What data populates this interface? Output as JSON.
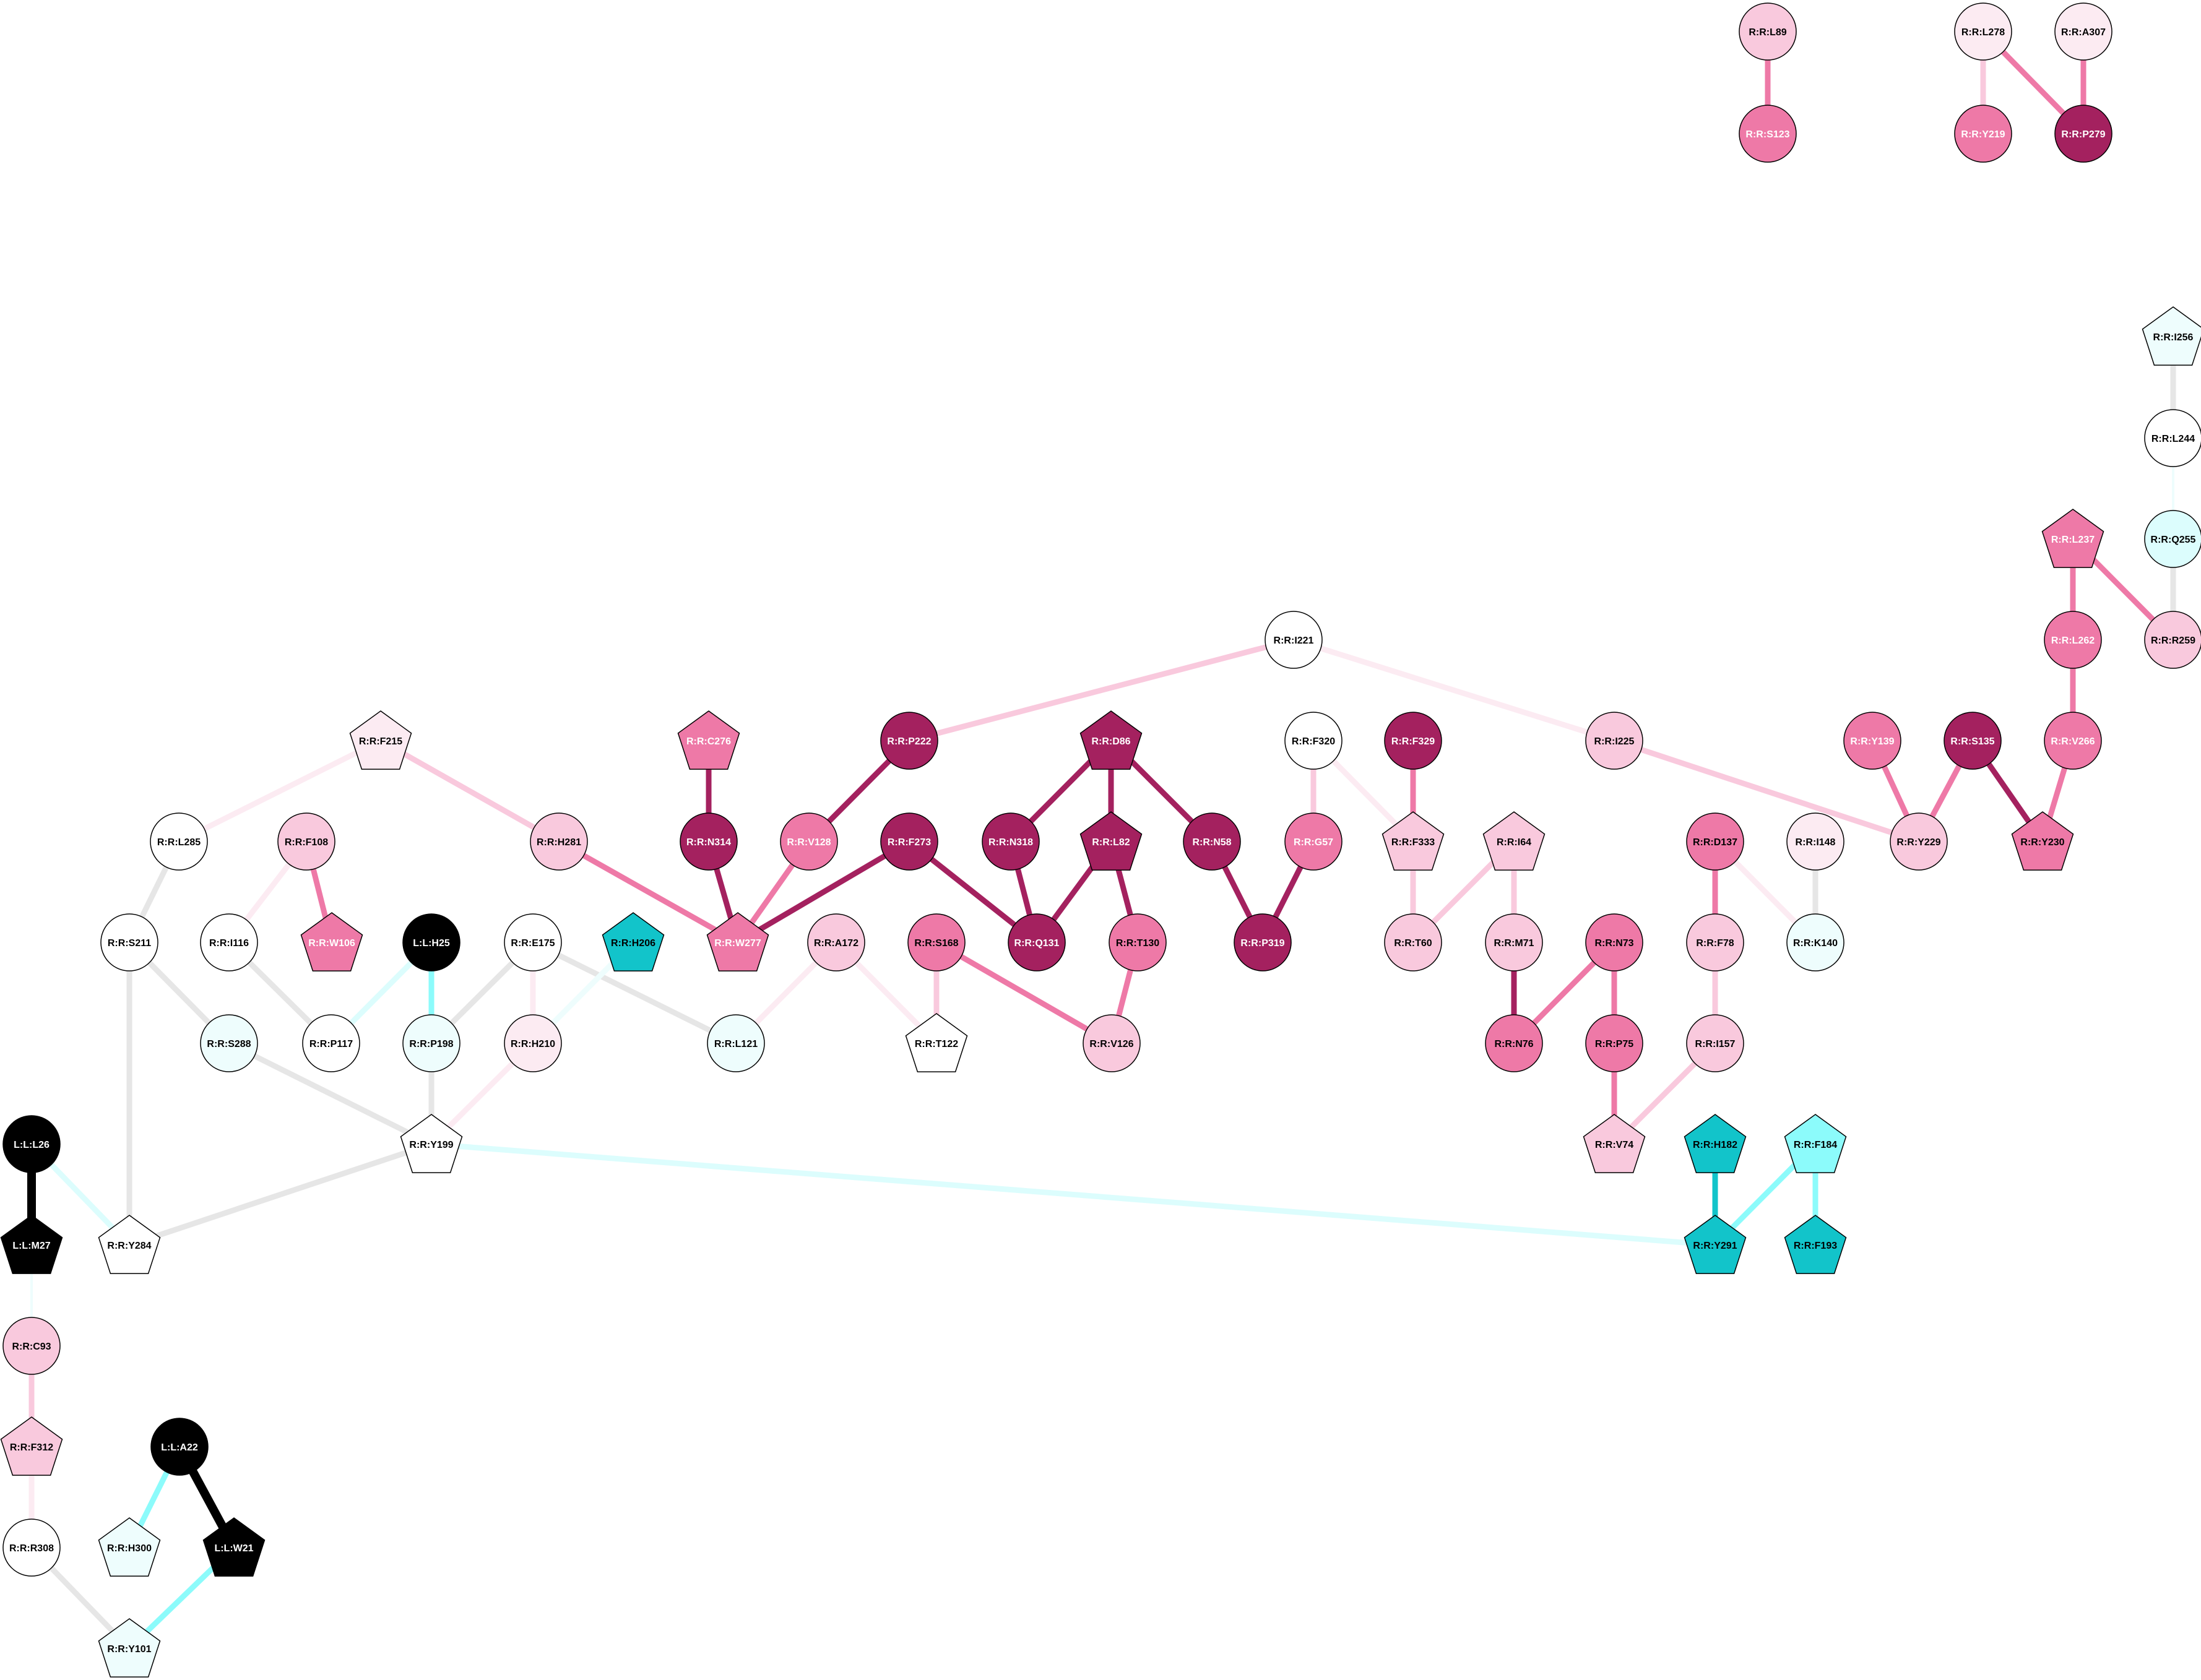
{
  "nodes": [
    {
      "id": "n1",
      "label": "R:R:L89",
      "shape": "circle",
      "fill": "#f9c9dd",
      "text": "#000000"
    },
    {
      "id": "n2",
      "label": "R:R:S123",
      "shape": "circle",
      "fill": "#ee79a7",
      "text": "#ffffff"
    },
    {
      "id": "n3",
      "label": "R:R:L278",
      "shape": "circle",
      "fill": "#fcebf2",
      "text": "#000000"
    },
    {
      "id": "n4",
      "label": "R:R:A307",
      "shape": "circle",
      "fill": "#fcebf2",
      "text": "#000000"
    },
    {
      "id": "n5",
      "label": "R:R:Y219",
      "shape": "circle",
      "fill": "#ee79a7",
      "text": "#ffffff"
    },
    {
      "id": "n6",
      "label": "R:R:P279",
      "shape": "circle",
      "fill": "#a4215f",
      "text": "#ffffff"
    },
    {
      "id": "n7",
      "label": "R:R:I256",
      "shape": "pentagon",
      "fill": "#eefdfd",
      "text": "#000000"
    },
    {
      "id": "n8",
      "label": "R:R:L244",
      "shape": "circle",
      "fill": "#ffffff",
      "text": "#000000"
    },
    {
      "id": "n9",
      "label": "R:R:L237",
      "shape": "pentagon",
      "fill": "#ee79a7",
      "text": "#ffffff"
    },
    {
      "id": "n10",
      "label": "R:R:Q255",
      "shape": "circle",
      "fill": "#dcfdfd",
      "text": "#000000"
    },
    {
      "id": "n11",
      "label": "R:R:L262",
      "shape": "circle",
      "fill": "#ee79a7",
      "text": "#ffffff"
    },
    {
      "id": "n12",
      "label": "R:R:R259",
      "shape": "circle",
      "fill": "#f9c9dd",
      "text": "#000000"
    },
    {
      "id": "n13",
      "label": "R:R:I221",
      "shape": "circle",
      "fill": "#ffffff",
      "text": "#000000"
    },
    {
      "id": "n14",
      "label": "R:R:F215",
      "shape": "pentagon",
      "fill": "#fcebf2",
      "text": "#000000"
    },
    {
      "id": "n15",
      "label": "R:R:C276",
      "shape": "pentagon",
      "fill": "#ee79a7",
      "text": "#ffffff"
    },
    {
      "id": "n16",
      "label": "R:R:P222",
      "shape": "circle",
      "fill": "#a4215f",
      "text": "#ffffff"
    },
    {
      "id": "n17",
      "label": "R:R:D86",
      "shape": "pentagon",
      "fill": "#a4215f",
      "text": "#ffffff"
    },
    {
      "id": "n18",
      "label": "R:R:F320",
      "shape": "circle",
      "fill": "#ffffff",
      "text": "#000000"
    },
    {
      "id": "n19",
      "label": "R:R:F329",
      "shape": "circle",
      "fill": "#a4215f",
      "text": "#ffffff"
    },
    {
      "id": "n20",
      "label": "R:R:I225",
      "shape": "circle",
      "fill": "#f9c9dd",
      "text": "#000000"
    },
    {
      "id": "n21",
      "label": "R:R:Y139",
      "shape": "circle",
      "fill": "#ee79a7",
      "text": "#ffffff"
    },
    {
      "id": "n22",
      "label": "R:R:S135",
      "shape": "circle",
      "fill": "#a4215f",
      "text": "#ffffff"
    },
    {
      "id": "n23",
      "label": "R:R:V266",
      "shape": "circle",
      "fill": "#ee79a7",
      "text": "#ffffff"
    },
    {
      "id": "n24",
      "label": "R:R:L285",
      "shape": "circle",
      "fill": "#ffffff",
      "text": "#000000"
    },
    {
      "id": "n25",
      "label": "R:R:F108",
      "shape": "circle",
      "fill": "#f9c9dd",
      "text": "#000000"
    },
    {
      "id": "n26",
      "label": "R:R:H281",
      "shape": "circle",
      "fill": "#f9c9dd",
      "text": "#000000"
    },
    {
      "id": "n27",
      "label": "R:R:N314",
      "shape": "circle",
      "fill": "#a4215f",
      "text": "#ffffff"
    },
    {
      "id": "n28",
      "label": "R:R:V128",
      "shape": "circle",
      "fill": "#ee79a7",
      "text": "#ffffff"
    },
    {
      "id": "n29",
      "label": "R:R:F273",
      "shape": "circle",
      "fill": "#a4215f",
      "text": "#ffffff"
    },
    {
      "id": "n30",
      "label": "R:R:N318",
      "shape": "circle",
      "fill": "#a4215f",
      "text": "#ffffff"
    },
    {
      "id": "n31",
      "label": "R:R:L82",
      "shape": "pentagon",
      "fill": "#a4215f",
      "text": "#ffffff"
    },
    {
      "id": "n32",
      "label": "R:R:N58",
      "shape": "circle",
      "fill": "#a4215f",
      "text": "#ffffff"
    },
    {
      "id": "n33",
      "label": "R:R:G57",
      "shape": "circle",
      "fill": "#ee79a7",
      "text": "#ffffff"
    },
    {
      "id": "n34",
      "label": "R:R:F333",
      "shape": "pentagon",
      "fill": "#f9c9dd",
      "text": "#000000"
    },
    {
      "id": "n35",
      "label": "R:R:I64",
      "shape": "pentagon",
      "fill": "#f9c9dd",
      "text": "#000000"
    },
    {
      "id": "n36",
      "label": "R:R:D137",
      "shape": "circle",
      "fill": "#ee79a7",
      "text": "#000000"
    },
    {
      "id": "n37",
      "label": "R:R:I148",
      "shape": "circle",
      "fill": "#fcebf2",
      "text": "#000000"
    },
    {
      "id": "n38",
      "label": "R:R:Y229",
      "shape": "circle",
      "fill": "#f9c9dd",
      "text": "#000000"
    },
    {
      "id": "n39",
      "label": "R:R:Y230",
      "shape": "pentagon",
      "fill": "#ee79a7",
      "text": "#000000"
    },
    {
      "id": "n40",
      "label": "R:R:S211",
      "shape": "circle",
      "fill": "#ffffff",
      "text": "#000000"
    },
    {
      "id": "n41",
      "label": "R:R:I116",
      "shape": "circle",
      "fill": "#ffffff",
      "text": "#000000"
    },
    {
      "id": "n42",
      "label": "R:R:W106",
      "shape": "pentagon",
      "fill": "#ee79a7",
      "text": "#ffffff"
    },
    {
      "id": "n43",
      "label": "L:L:H25",
      "shape": "circle",
      "fill": "#000000",
      "text": "#ffffff"
    },
    {
      "id": "n44",
      "label": "R:R:E175",
      "shape": "circle",
      "fill": "#ffffff",
      "text": "#000000"
    },
    {
      "id": "n45",
      "label": "R:R:H206",
      "shape": "pentagon",
      "fill": "#12c4ca",
      "text": "#000000"
    },
    {
      "id": "n46",
      "label": "R:R:W277",
      "shape": "pentagon",
      "fill": "#ee79a7",
      "text": "#ffffff"
    },
    {
      "id": "n47",
      "label": "R:R:A172",
      "shape": "circle",
      "fill": "#f9c9dd",
      "text": "#000000"
    },
    {
      "id": "n48",
      "label": "R:R:S168",
      "shape": "circle",
      "fill": "#ee79a7",
      "text": "#000000"
    },
    {
      "id": "n49",
      "label": "R:R:Q131",
      "shape": "circle",
      "fill": "#a4215f",
      "text": "#ffffff"
    },
    {
      "id": "n50",
      "label": "R:R:T130",
      "shape": "circle",
      "fill": "#ee79a7",
      "text": "#000000"
    },
    {
      "id": "n51",
      "label": "R:R:P319",
      "shape": "circle",
      "fill": "#a4215f",
      "text": "#ffffff"
    },
    {
      "id": "n52",
      "label": "R:R:T60",
      "shape": "circle",
      "fill": "#f9c9dd",
      "text": "#000000"
    },
    {
      "id": "n53",
      "label": "R:R:M71",
      "shape": "circle",
      "fill": "#f9c9dd",
      "text": "#000000"
    },
    {
      "id": "n54",
      "label": "R:R:N73",
      "shape": "circle",
      "fill": "#ee79a7",
      "text": "#000000"
    },
    {
      "id": "n55",
      "label": "R:R:F78",
      "shape": "circle",
      "fill": "#f9c9dd",
      "text": "#000000"
    },
    {
      "id": "n56",
      "label": "R:R:K140",
      "shape": "circle",
      "fill": "#eefdfd",
      "text": "#000000"
    },
    {
      "id": "n57",
      "label": "R:R:S288",
      "shape": "circle",
      "fill": "#eefdfd",
      "text": "#000000"
    },
    {
      "id": "n58",
      "label": "R:R:P117",
      "shape": "circle",
      "fill": "#ffffff",
      "text": "#000000"
    },
    {
      "id": "n59",
      "label": "R:R:P198",
      "shape": "circle",
      "fill": "#eefdfd",
      "text": "#000000"
    },
    {
      "id": "n60",
      "label": "R:R:H210",
      "shape": "circle",
      "fill": "#fcebf2",
      "text": "#000000"
    },
    {
      "id": "n61",
      "label": "R:R:L121",
      "shape": "circle",
      "fill": "#eefdfd",
      "text": "#000000"
    },
    {
      "id": "n62",
      "label": "R:R:T122",
      "shape": "pentagon",
      "fill": "#ffffff",
      "text": "#000000"
    },
    {
      "id": "n63",
      "label": "R:R:V126",
      "shape": "circle",
      "fill": "#f9c9dd",
      "text": "#000000"
    },
    {
      "id": "n64",
      "label": "R:R:N76",
      "shape": "circle",
      "fill": "#ee79a7",
      "text": "#000000"
    },
    {
      "id": "n65",
      "label": "R:R:P75",
      "shape": "circle",
      "fill": "#ee79a7",
      "text": "#000000"
    },
    {
      "id": "n66",
      "label": "R:R:I157",
      "shape": "circle",
      "fill": "#f9c9dd",
      "text": "#000000"
    },
    {
      "id": "n67",
      "label": "L:L:L26",
      "shape": "circle",
      "fill": "#000000",
      "text": "#ffffff"
    },
    {
      "id": "n68",
      "label": "R:R:Y199",
      "shape": "pentagon",
      "fill": "#ffffff",
      "text": "#000000"
    },
    {
      "id": "n69",
      "label": "R:R:V74",
      "shape": "pentagon",
      "fill": "#f9c9dd",
      "text": "#000000"
    },
    {
      "id": "n70",
      "label": "R:R:H182",
      "shape": "pentagon",
      "fill": "#12c4ca",
      "text": "#000000"
    },
    {
      "id": "n71",
      "label": "R:R:F184",
      "shape": "pentagon",
      "fill": "#8cfbfb",
      "text": "#000000"
    },
    {
      "id": "n72",
      "label": "L:L:M27",
      "shape": "pentagon",
      "fill": "#000000",
      "text": "#ffffff"
    },
    {
      "id": "n73",
      "label": "R:R:Y284",
      "shape": "pentagon",
      "fill": "#ffffff",
      "text": "#000000"
    },
    {
      "id": "n74",
      "label": "R:R:Y291",
      "shape": "pentagon",
      "fill": "#12c4ca",
      "text": "#000000"
    },
    {
      "id": "n75",
      "label": "R:R:F193",
      "shape": "pentagon",
      "fill": "#12c4ca",
      "text": "#000000"
    },
    {
      "id": "n76",
      "label": "R:R:C93",
      "shape": "circle",
      "fill": "#f9c9dd",
      "text": "#000000"
    },
    {
      "id": "n77",
      "label": "R:R:F312",
      "shape": "pentagon",
      "fill": "#f9c9dd",
      "text": "#000000"
    },
    {
      "id": "n78",
      "label": "L:L:A22",
      "shape": "circle",
      "fill": "#000000",
      "text": "#ffffff"
    },
    {
      "id": "n79",
      "label": "R:R:R308",
      "shape": "circle",
      "fill": "#ffffff",
      "text": "#000000"
    },
    {
      "id": "n80",
      "label": "R:R:H300",
      "shape": "pentagon",
      "fill": "#eefdfd",
      "text": "#000000"
    },
    {
      "id": "n81",
      "label": "L:L:W21",
      "shape": "pentagon",
      "fill": "#000000",
      "text": "#ffffff"
    },
    {
      "id": "n82",
      "label": "R:R:Y101",
      "shape": "pentagon",
      "fill": "#eefdfd",
      "text": "#000000"
    }
  ],
  "edges": [
    {
      "s": "n1",
      "t": "n2",
      "color": "#ee79a7",
      "w": "medium"
    },
    {
      "s": "n3",
      "t": "n5",
      "color": "#f9c9dd",
      "w": "medium"
    },
    {
      "s": "n3",
      "t": "n6",
      "color": "#ee79a7",
      "w": "medium"
    },
    {
      "s": "n4",
      "t": "n6",
      "color": "#ee79a7",
      "w": "medium"
    },
    {
      "s": "n7",
      "t": "n8",
      "color": "#e6e6e6",
      "w": "medium"
    },
    {
      "s": "n8",
      "t": "n10",
      "color": "#eefdfd",
      "w": "thin"
    },
    {
      "s": "n10",
      "t": "n12",
      "color": "#e6e6e6",
      "w": "medium"
    },
    {
      "s": "n9",
      "t": "n12",
      "color": "#ee79a7",
      "w": "medium"
    },
    {
      "s": "n9",
      "t": "n11",
      "color": "#ee79a7",
      "w": "medium"
    },
    {
      "s": "n11",
      "t": "n23",
      "color": "#ee79a7",
      "w": "medium"
    },
    {
      "s": "n23",
      "t": "n39",
      "color": "#ee79a7",
      "w": "medium"
    },
    {
      "s": "n22",
      "t": "n39",
      "color": "#a4215f",
      "w": "medium"
    },
    {
      "s": "n22",
      "t": "n38",
      "color": "#ee79a7",
      "w": "medium"
    },
    {
      "s": "n21",
      "t": "n38",
      "color": "#ee79a7",
      "w": "medium"
    },
    {
      "s": "n20",
      "t": "n38",
      "color": "#f9c9dd",
      "w": "medium"
    },
    {
      "s": "n13",
      "t": "n20",
      "color": "#fcebf2",
      "w": "medium"
    },
    {
      "s": "n13",
      "t": "n16",
      "color": "#f9c9dd",
      "w": "medium"
    },
    {
      "s": "n16",
      "t": "n28",
      "color": "#a4215f",
      "w": "medium"
    },
    {
      "s": "n28",
      "t": "n46",
      "color": "#ee79a7",
      "w": "medium"
    },
    {
      "s": "n15",
      "t": "n27",
      "color": "#a4215f",
      "w": "medium"
    },
    {
      "s": "n27",
      "t": "n46",
      "color": "#a4215f",
      "w": "medium"
    },
    {
      "s": "n29",
      "t": "n46",
      "color": "#a4215f",
      "w": "medium"
    },
    {
      "s": "n29",
      "t": "n49",
      "color": "#a4215f",
      "w": "medium"
    },
    {
      "s": "n26",
      "t": "n46",
      "color": "#ee79a7",
      "w": "medium"
    },
    {
      "s": "n14",
      "t": "n26",
      "color": "#f9c9dd",
      "w": "medium"
    },
    {
      "s": "n14",
      "t": "n24",
      "color": "#fcebf2",
      "w": "medium"
    },
    {
      "s": "n24",
      "t": "n40",
      "color": "#e6e6e6",
      "w": "medium"
    },
    {
      "s": "n17",
      "t": "n30",
      "color": "#a4215f",
      "w": "medium"
    },
    {
      "s": "n17",
      "t": "n31",
      "color": "#a4215f",
      "w": "medium"
    },
    {
      "s": "n17",
      "t": "n32",
      "color": "#a4215f",
      "w": "medium"
    },
    {
      "s": "n30",
      "t": "n49",
      "color": "#a4215f",
      "w": "medium"
    },
    {
      "s": "n31",
      "t": "n49",
      "color": "#a4215f",
      "w": "medium"
    },
    {
      "s": "n31",
      "t": "n50",
      "color": "#a4215f",
      "w": "medium"
    },
    {
      "s": "n50",
      "t": "n63",
      "color": "#ee79a7",
      "w": "medium"
    },
    {
      "s": "n32",
      "t": "n51",
      "color": "#a4215f",
      "w": "medium"
    },
    {
      "s": "n33",
      "t": "n51",
      "color": "#a4215f",
      "w": "medium"
    },
    {
      "s": "n18",
      "t": "n33",
      "color": "#f9c9dd",
      "w": "medium"
    },
    {
      "s": "n18",
      "t": "n34",
      "color": "#fcebf2",
      "w": "medium"
    },
    {
      "s": "n19",
      "t": "n34",
      "color": "#ee79a7",
      "w": "medium"
    },
    {
      "s": "n34",
      "t": "n52",
      "color": "#f9c9dd",
      "w": "medium"
    },
    {
      "s": "n35",
      "t": "n52",
      "color": "#f9c9dd",
      "w": "medium"
    },
    {
      "s": "n35",
      "t": "n53",
      "color": "#f9c9dd",
      "w": "medium"
    },
    {
      "s": "n53",
      "t": "n64",
      "color": "#a4215f",
      "w": "medium"
    },
    {
      "s": "n54",
      "t": "n64",
      "color": "#ee79a7",
      "w": "medium"
    },
    {
      "s": "n54",
      "t": "n65",
      "color": "#ee79a7",
      "w": "medium"
    },
    {
      "s": "n65",
      "t": "n69",
      "color": "#ee79a7",
      "w": "medium"
    },
    {
      "s": "n66",
      "t": "n69",
      "color": "#f9c9dd",
      "w": "medium"
    },
    {
      "s": "n55",
      "t": "n66",
      "color": "#f9c9dd",
      "w": "medium"
    },
    {
      "s": "n36",
      "t": "n55",
      "color": "#ee79a7",
      "w": "medium"
    },
    {
      "s": "n36",
      "t": "n56",
      "color": "#fcebf2",
      "w": "medium"
    },
    {
      "s": "n37",
      "t": "n56",
      "color": "#e6e6e6",
      "w": "medium"
    },
    {
      "s": "n25",
      "t": "n42",
      "color": "#ee79a7",
      "w": "medium"
    },
    {
      "s": "n25",
      "t": "n41",
      "color": "#fcebf2",
      "w": "medium"
    },
    {
      "s": "n41",
      "t": "n58",
      "color": "#e6e6e6",
      "w": "medium"
    },
    {
      "s": "n43",
      "t": "n58",
      "color": "#dcfdfd",
      "w": "medium"
    },
    {
      "s": "n43",
      "t": "n59",
      "color": "#8cfbfb",
      "w": "medium"
    },
    {
      "s": "n44",
      "t": "n59",
      "color": "#e6e6e6",
      "w": "medium"
    },
    {
      "s": "n44",
      "t": "n60",
      "color": "#fcebf2",
      "w": "medium"
    },
    {
      "s": "n44",
      "t": "n61",
      "color": "#e6e6e6",
      "w": "medium"
    },
    {
      "s": "n45",
      "t": "n60",
      "color": "#eefdfd",
      "w": "medium"
    },
    {
      "s": "n47",
      "t": "n61",
      "color": "#fcebf2",
      "w": "medium"
    },
    {
      "s": "n47",
      "t": "n62",
      "color": "#fcebf2",
      "w": "medium"
    },
    {
      "s": "n48",
      "t": "n62",
      "color": "#f9c9dd",
      "w": "medium"
    },
    {
      "s": "n48",
      "t": "n63",
      "color": "#ee79a7",
      "w": "medium"
    },
    {
      "s": "n40",
      "t": "n57",
      "color": "#e6e6e6",
      "w": "medium"
    },
    {
      "s": "n40",
      "t": "n73",
      "color": "#e6e6e6",
      "w": "medium"
    },
    {
      "s": "n57",
      "t": "n68",
      "color": "#e6e6e6",
      "w": "medium"
    },
    {
      "s": "n59",
      "t": "n68",
      "color": "#e6e6e6",
      "w": "medium"
    },
    {
      "s": "n60",
      "t": "n68",
      "color": "#fcebf2",
      "w": "medium"
    },
    {
      "s": "n68",
      "t": "n73",
      "color": "#e6e6e6",
      "w": "medium"
    },
    {
      "s": "n68",
      "t": "n74",
      "color": "#dcfdfd",
      "w": "medium"
    },
    {
      "s": "n70",
      "t": "n74",
      "color": "#12c4ca",
      "w": "medium"
    },
    {
      "s": "n71",
      "t": "n74",
      "color": "#8cfbfb",
      "w": "medium"
    },
    {
      "s": "n71",
      "t": "n75",
      "color": "#8cfbfb",
      "w": "medium"
    },
    {
      "s": "n67",
      "t": "n72",
      "color": "#000000",
      "w": "thick"
    },
    {
      "s": "n67",
      "t": "n73",
      "color": "#dcfdfd",
      "w": "medium"
    },
    {
      "s": "n72",
      "t": "n76",
      "color": "#eefdfd",
      "w": "thin"
    },
    {
      "s": "n76",
      "t": "n77",
      "color": "#f9c9dd",
      "w": "medium"
    },
    {
      "s": "n77",
      "t": "n79",
      "color": "#fcebf2",
      "w": "medium"
    },
    {
      "s": "n79",
      "t": "n82",
      "color": "#e6e6e6",
      "w": "medium"
    },
    {
      "s": "n78",
      "t": "n80",
      "color": "#8cfbfb",
      "w": "medium"
    },
    {
      "s": "n78",
      "t": "n81",
      "color": "#000000",
      "w": "thick"
    },
    {
      "s": "n81",
      "t": "n82",
      "color": "#8cfbfb",
      "w": "medium"
    }
  ]
}
